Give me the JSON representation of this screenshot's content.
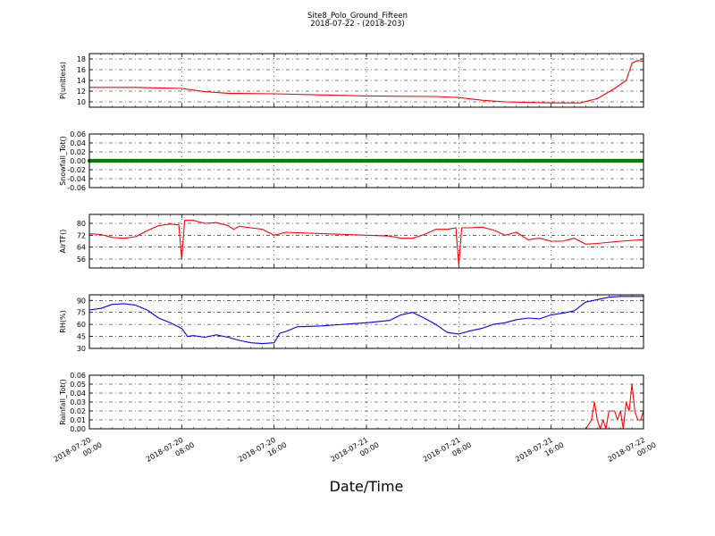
{
  "figure": {
    "title_line1": "Site8_Polo_Ground_Fifteen",
    "title_line2": "2018-07-22 - (2018-203)",
    "xlabel": "Date/Time"
  },
  "chart_data": {
    "type": "line",
    "x_range": [
      "2018-07-20 00:00",
      "2018-07-22 00:00"
    ],
    "x_tick_labels": [
      [
        "2018-07-20",
        "00:00"
      ],
      [
        "2018-07-20",
        "08:00"
      ],
      [
        "2018-07-20",
        "16:00"
      ],
      [
        "2018-07-21",
        "00:00"
      ],
      [
        "2018-07-21",
        "08:00"
      ],
      [
        "2018-07-21",
        "16:00"
      ],
      [
        "2018-07-22",
        "00:00"
      ]
    ],
    "grid": true,
    "panels": [
      {
        "ylabel": "P(unitless)",
        "ylim": [
          9,
          19
        ],
        "yticks": [
          "10",
          "12",
          "14",
          "16",
          "18"
        ],
        "color": "#ff0000",
        "marker": false,
        "points": [
          [
            "2018-07-20 00:00",
            12.7
          ],
          [
            "2018-07-20 04:00",
            12.7
          ],
          [
            "2018-07-20 06:00",
            12.6
          ],
          [
            "2018-07-20 08:00",
            12.5
          ],
          [
            "2018-07-20 10:00",
            11.9
          ],
          [
            "2018-07-20 12:00",
            11.6
          ],
          [
            "2018-07-20 16:00",
            11.5
          ],
          [
            "2018-07-20 20:00",
            11.3
          ],
          [
            "2018-07-21 00:00",
            11.1
          ],
          [
            "2018-07-21 06:00",
            11.0
          ],
          [
            "2018-07-21 08:00",
            10.8
          ],
          [
            "2018-07-21 10:00",
            10.3
          ],
          [
            "2018-07-21 12:00",
            10.0
          ],
          [
            "2018-07-21 16:00",
            9.8
          ],
          [
            "2018-07-21 18:30",
            9.8
          ],
          [
            "2018-07-21 20:00",
            10.6
          ],
          [
            "2018-07-21 21:30",
            12.5
          ],
          [
            "2018-07-21 22:30",
            14.0
          ],
          [
            "2018-07-21 23:00",
            17.2
          ],
          [
            "2018-07-21 23:30",
            17.7
          ],
          [
            "2018-07-22 00:00",
            17.6
          ]
        ]
      },
      {
        "ylabel": "Snowfall_Tot()",
        "ylim": [
          -0.06,
          0.06
        ],
        "yticks": [
          "-0.06",
          "-0.04",
          "-0.02",
          "0.00",
          "0.02",
          "0.04",
          "0.06"
        ],
        "color": "#008000",
        "marker": true,
        "points": [
          [
            "2018-07-20 00:00",
            0.0
          ],
          [
            "2018-07-22 00:00",
            0.0
          ]
        ]
      },
      {
        "ylabel": "AirTF()",
        "ylim": [
          50,
          86
        ],
        "yticks": [
          "56",
          "64",
          "72",
          "80"
        ],
        "color": "#ff0000",
        "marker": false,
        "points": [
          [
            "2018-07-20 00:00",
            73
          ],
          [
            "2018-07-20 01:00",
            72.5
          ],
          [
            "2018-07-20 02:00",
            70.5
          ],
          [
            "2018-07-20 03:00",
            70
          ],
          [
            "2018-07-20 04:00",
            71
          ],
          [
            "2018-07-20 05:00",
            75
          ],
          [
            "2018-07-20 06:00",
            78.5
          ],
          [
            "2018-07-20 07:00",
            79.5
          ],
          [
            "2018-07-20 07:45",
            79
          ],
          [
            "2018-07-20 08:00",
            56
          ],
          [
            "2018-07-20 08:15",
            82
          ],
          [
            "2018-07-20 09:00",
            82
          ],
          [
            "2018-07-20 10:00",
            80
          ],
          [
            "2018-07-20 11:00",
            80.5
          ],
          [
            "2018-07-20 12:00",
            78.5
          ],
          [
            "2018-07-20 12:30",
            76
          ],
          [
            "2018-07-20 13:00",
            78
          ],
          [
            "2018-07-20 14:00",
            77
          ],
          [
            "2018-07-20 15:00",
            76
          ],
          [
            "2018-07-20 16:00",
            72
          ],
          [
            "2018-07-20 17:00",
            74
          ],
          [
            "2018-07-21 00:00",
            72
          ],
          [
            "2018-07-21 02:00",
            71.5
          ],
          [
            "2018-07-21 03:00",
            70
          ],
          [
            "2018-07-21 04:00",
            70
          ],
          [
            "2018-07-21 05:00",
            72.5
          ],
          [
            "2018-07-21 06:00",
            76
          ],
          [
            "2018-07-21 07:00",
            76
          ],
          [
            "2018-07-21 07:45",
            77
          ],
          [
            "2018-07-21 08:00",
            52
          ],
          [
            "2018-07-21 08:15",
            77
          ],
          [
            "2018-07-21 09:00",
            77
          ],
          [
            "2018-07-21 10:00",
            77.5
          ],
          [
            "2018-07-21 11:00",
            75.5
          ],
          [
            "2018-07-21 12:00",
            72
          ],
          [
            "2018-07-21 13:00",
            74
          ],
          [
            "2018-07-21 14:00",
            69
          ],
          [
            "2018-07-21 15:00",
            70
          ],
          [
            "2018-07-21 16:00",
            68
          ],
          [
            "2018-07-21 17:00",
            68
          ],
          [
            "2018-07-21 18:00",
            70
          ],
          [
            "2018-07-21 19:00",
            66
          ],
          [
            "2018-07-21 20:00",
            66.5
          ],
          [
            "2018-07-21 22:00",
            68
          ],
          [
            "2018-07-22 00:00",
            69
          ]
        ]
      },
      {
        "ylabel": "RH(%)",
        "ylim": [
          30,
          97
        ],
        "yticks": [
          "30",
          "45",
          "60",
          "75",
          "90"
        ],
        "color": "#0000ff",
        "marker": false,
        "points": [
          [
            "2018-07-20 00:00",
            78
          ],
          [
            "2018-07-20 01:00",
            80
          ],
          [
            "2018-07-20 02:00",
            85
          ],
          [
            "2018-07-20 03:00",
            86
          ],
          [
            "2018-07-20 04:00",
            84
          ],
          [
            "2018-07-20 05:00",
            78
          ],
          [
            "2018-07-20 06:00",
            68
          ],
          [
            "2018-07-20 07:00",
            62
          ],
          [
            "2018-07-20 08:00",
            55
          ],
          [
            "2018-07-20 08:30",
            45
          ],
          [
            "2018-07-20 09:00",
            46
          ],
          [
            "2018-07-20 10:00",
            44
          ],
          [
            "2018-07-20 11:00",
            47
          ],
          [
            "2018-07-20 12:00",
            44
          ],
          [
            "2018-07-20 13:00",
            40
          ],
          [
            "2018-07-20 14:00",
            37
          ],
          [
            "2018-07-20 15:00",
            36
          ],
          [
            "2018-07-20 16:00",
            37
          ],
          [
            "2018-07-20 16:30",
            49
          ],
          [
            "2018-07-20 17:00",
            51
          ],
          [
            "2018-07-20 18:00",
            57
          ],
          [
            "2018-07-20 20:00",
            58
          ],
          [
            "2018-07-21 00:00",
            62
          ],
          [
            "2018-07-21 02:00",
            65
          ],
          [
            "2018-07-21 03:00",
            72
          ],
          [
            "2018-07-21 04:00",
            75
          ],
          [
            "2018-07-21 05:00",
            68
          ],
          [
            "2018-07-21 06:00",
            60
          ],
          [
            "2018-07-21 07:00",
            50
          ],
          [
            "2018-07-21 08:00",
            48
          ],
          [
            "2018-07-21 09:00",
            52
          ],
          [
            "2018-07-21 10:00",
            55
          ],
          [
            "2018-07-21 11:00",
            60
          ],
          [
            "2018-07-21 12:00",
            62
          ],
          [
            "2018-07-21 13:00",
            66
          ],
          [
            "2018-07-21 14:00",
            68
          ],
          [
            "2018-07-21 15:00",
            67
          ],
          [
            "2018-07-21 16:00",
            72
          ],
          [
            "2018-07-21 17:00",
            74
          ],
          [
            "2018-07-21 18:00",
            77
          ],
          [
            "2018-07-21 19:00",
            88
          ],
          [
            "2018-07-21 20:00",
            91
          ],
          [
            "2018-07-21 21:00",
            94
          ],
          [
            "2018-07-21 22:00",
            95
          ],
          [
            "2018-07-22 00:00",
            95
          ]
        ]
      },
      {
        "ylabel": "Rainfall_Tot()",
        "ylim": [
          0,
          0.06
        ],
        "yticks": [
          "0.00",
          "0.01",
          "0.02",
          "0.03",
          "0.04",
          "0.05",
          "0.06"
        ],
        "color": "#ff0000",
        "marker": false,
        "points": [
          [
            "2018-07-20 00:00",
            0
          ],
          [
            "2018-07-21 19:00",
            0
          ],
          [
            "2018-07-21 19:30",
            0.01
          ],
          [
            "2018-07-21 19:45",
            0.03
          ],
          [
            "2018-07-21 20:00",
            0.01
          ],
          [
            "2018-07-21 20:15",
            0
          ],
          [
            "2018-07-21 20:30",
            0.01
          ],
          [
            "2018-07-21 20:45",
            0
          ],
          [
            "2018-07-21 21:00",
            0.02
          ],
          [
            "2018-07-21 21:30",
            0.02
          ],
          [
            "2018-07-21 21:45",
            0.01
          ],
          [
            "2018-07-21 22:00",
            0.02
          ],
          [
            "2018-07-21 22:15",
            0
          ],
          [
            "2018-07-21 22:30",
            0.03
          ],
          [
            "2018-07-21 22:45",
            0.02
          ],
          [
            "2018-07-21 23:00",
            0.05
          ],
          [
            "2018-07-21 23:15",
            0.02
          ],
          [
            "2018-07-21 23:30",
            0.01
          ],
          [
            "2018-07-21 23:45",
            0.01
          ],
          [
            "2018-07-22 00:00",
            0.02
          ]
        ]
      }
    ]
  }
}
